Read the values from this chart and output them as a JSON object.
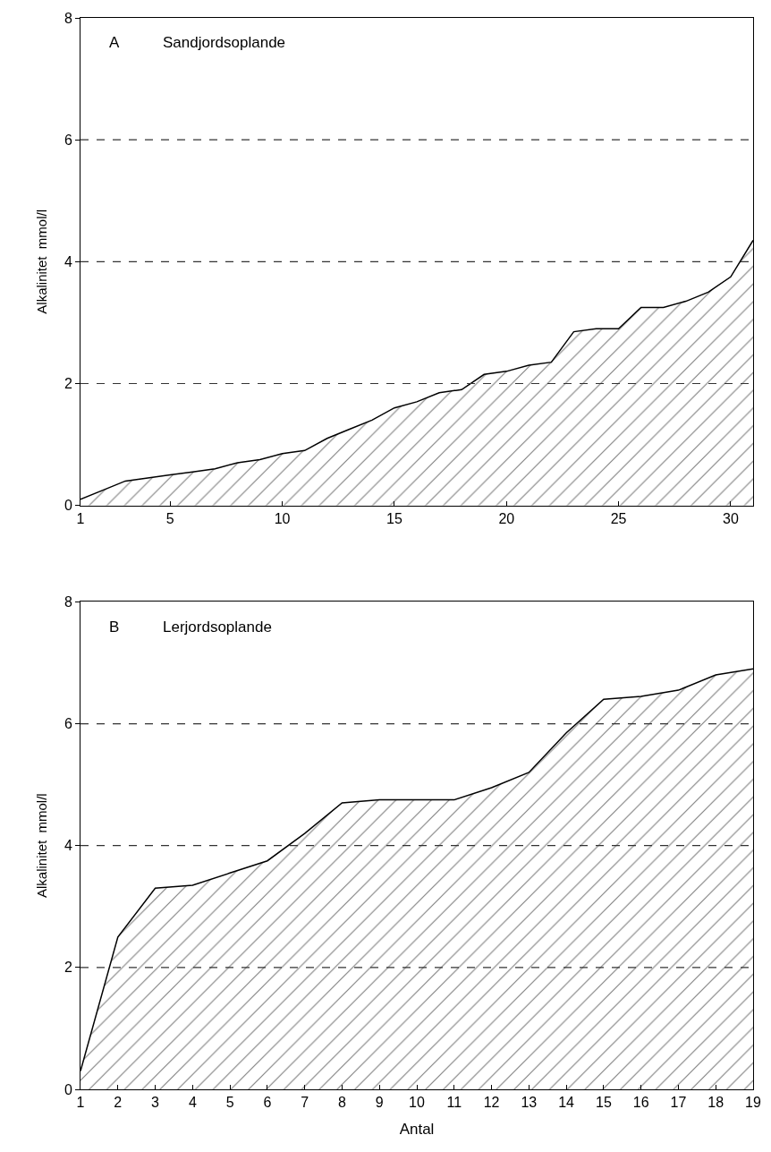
{
  "chart_data": [
    {
      "type": "area",
      "x": [
        1,
        2,
        3,
        4,
        5,
        6,
        7,
        8,
        9,
        10,
        11,
        12,
        13,
        14,
        15,
        16,
        17,
        18,
        19,
        20,
        21,
        22,
        23,
        24,
        25,
        26,
        27,
        28,
        29,
        30,
        31
      ],
      "series": [
        {
          "color": "#000000",
          "values": [
            0.1,
            0.25,
            0.4,
            0.45,
            0.5,
            0.55,
            0.6,
            0.7,
            0.75,
            0.85,
            0.9,
            1.1,
            1.25,
            1.4,
            1.6,
            1.7,
            1.85,
            1.9,
            2.15,
            2.2,
            2.3,
            2.35,
            2.85,
            2.9,
            2.9,
            3.25,
            3.25,
            3.35,
            3.5,
            3.75,
            4.35
          ]
        }
      ],
      "ylabel": "Alkalinitet  mmol/l",
      "annotations": [
        "A",
        "Sandjordsoplande"
      ],
      "xlim": [
        1,
        31
      ],
      "xticks": [
        1,
        5,
        10,
        15,
        20,
        25,
        30
      ],
      "ylim": [
        0,
        8
      ],
      "yticks": [
        0,
        2,
        4,
        6,
        8
      ],
      "ref_lines": [
        {
          "axis": "y",
          "value": 2,
          "line_style": "dashed"
        },
        {
          "axis": "y",
          "value": 4,
          "line_style": "dashed"
        },
        {
          "axis": "y",
          "value": 6,
          "line_style": "dashed"
        }
      ],
      "marker": "none"
    },
    {
      "type": "area",
      "x": [
        1,
        2,
        3,
        4,
        5,
        6,
        7,
        8,
        9,
        10,
        11,
        12,
        13,
        14,
        15,
        16,
        17,
        18,
        19
      ],
      "series": [
        {
          "color": "#000000",
          "values": [
            0.3,
            2.5,
            3.3,
            3.35,
            3.55,
            3.75,
            4.2,
            4.7,
            4.75,
            4.75,
            4.75,
            4.95,
            5.2,
            5.85,
            6.4,
            6.45,
            6.55,
            6.8,
            6.9
          ]
        }
      ],
      "ylabel": "Alkalinitet  mmol/l",
      "xlabel": "Antal",
      "annotations": [
        "B",
        "Lerjordsoplande"
      ],
      "xlim": [
        1,
        19
      ],
      "xticks": [
        1,
        2,
        3,
        4,
        5,
        6,
        7,
        8,
        9,
        10,
        11,
        12,
        13,
        14,
        15,
        16,
        17,
        18,
        19
      ],
      "ylim": [
        0,
        8
      ],
      "yticks": [
        0,
        2,
        4,
        6,
        8
      ],
      "ref_lines": [
        {
          "axis": "y",
          "value": 2,
          "line_style": "dashed"
        },
        {
          "axis": "y",
          "value": 4,
          "line_style": "dashed"
        },
        {
          "axis": "y",
          "value": 6,
          "line_style": "dashed"
        }
      ],
      "marker": "none"
    }
  ]
}
